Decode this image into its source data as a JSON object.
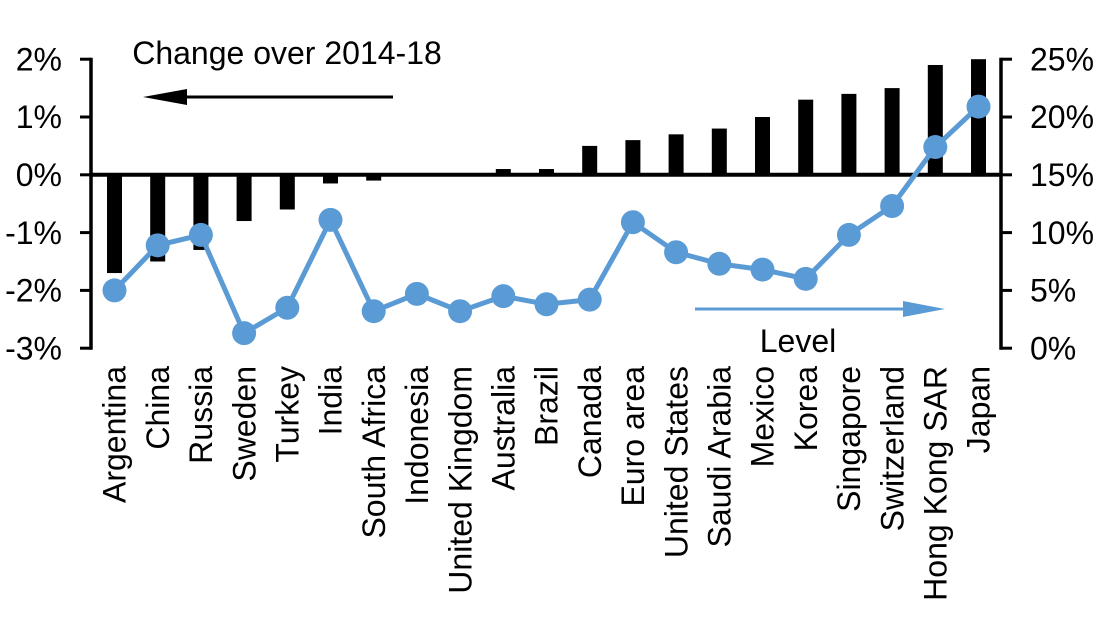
{
  "colors": {
    "bar": "#000000",
    "line": "#5b9bd5",
    "axis": "#000000",
    "background": "#ffffff"
  },
  "chart_data": {
    "type": "bar+line (dual axis)",
    "title": "Change over 2014-18",
    "right_series_label": "Level",
    "categories": [
      "Argentina",
      "China",
      "Russia",
      "Sweden",
      "Turkey",
      "India",
      "South Africa",
      "Indonesia",
      "United Kingdom",
      "Australia",
      "Brazil",
      "Canada",
      "Euro area",
      "United States",
      "Saudi Arabia",
      "Mexico",
      "Korea",
      "Singapore",
      "Switzerland",
      "Hong Kong SAR",
      "Japan"
    ],
    "series": [
      {
        "name": "Change over 2014-18",
        "type": "bar",
        "axis": "left",
        "values": [
          -1.7,
          -1.5,
          -1.3,
          -0.8,
          -0.6,
          -0.15,
          -0.1,
          0,
          0,
          0.1,
          0.1,
          0.5,
          0.6,
          0.7,
          0.8,
          1.0,
          1.3,
          1.4,
          1.5,
          1.9,
          2.0
        ]
      },
      {
        "name": "Level",
        "type": "line",
        "axis": "right",
        "values": [
          5.0,
          8.9,
          9.8,
          1.3,
          3.5,
          11.1,
          3.2,
          4.7,
          3.2,
          4.5,
          3.8,
          4.2,
          10.9,
          8.3,
          7.3,
          6.8,
          6.0,
          9.8,
          12.3,
          17.4,
          20.9
        ]
      }
    ],
    "left_axis": {
      "ticks": [
        2,
        1,
        0,
        -1,
        -2,
        -3
      ],
      "tick_labels": [
        "2%",
        "1%",
        "0%",
        "-1%",
        "-2%",
        "-3%"
      ],
      "range": [
        -3,
        2
      ]
    },
    "right_axis": {
      "ticks": [
        25,
        20,
        15,
        10,
        5,
        0
      ],
      "tick_labels": [
        "25%",
        "20%",
        "15%",
        "10%",
        "5%",
        "0%"
      ],
      "range": [
        0,
        25
      ]
    },
    "grid": "off",
    "legend": "arrows pointing to respective axes"
  }
}
